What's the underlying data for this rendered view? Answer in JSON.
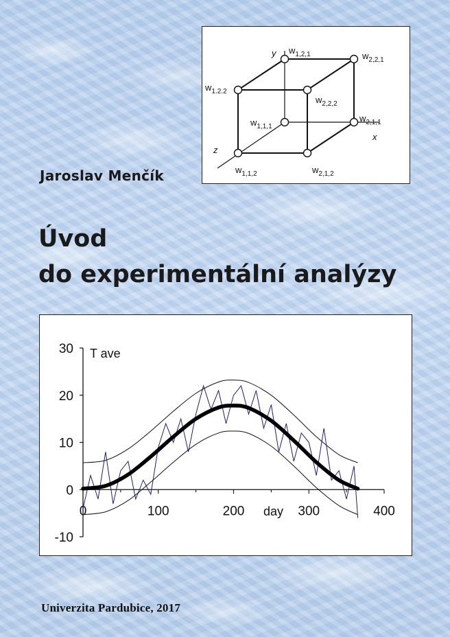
{
  "author": "Jaroslav Menčík",
  "title": {
    "line1": "Úvod",
    "line2": "do experimentální analýzy"
  },
  "publisher": "Univerzita Pardubice,  2017",
  "cube_diagram": {
    "axis_labels": {
      "x": "x",
      "y": "y",
      "z": "z"
    },
    "nodes": [
      {
        "id": "w121",
        "base": "w",
        "sub": "1,2,1"
      },
      {
        "id": "w221",
        "base": "w",
        "sub": "2,2,1"
      },
      {
        "id": "w122",
        "base": "w",
        "sub": "1.2.2"
      },
      {
        "id": "w222",
        "base": "w",
        "sub": "2,2,2"
      },
      {
        "id": "w111",
        "base": "w",
        "sub": "1,1,1"
      },
      {
        "id": "w211",
        "base": "w",
        "sub": "2,1,1"
      },
      {
        "id": "w112",
        "base": "w",
        "sub": "1,1,2"
      },
      {
        "id": "w212",
        "base": "w",
        "sub": "2,1,2"
      }
    ]
  },
  "chart_data": {
    "type": "line",
    "ylabel": "T ave",
    "xlabel": "day",
    "xlim": [
      0,
      400
    ],
    "ylim": [
      -10,
      30
    ],
    "xticks": [
      "0",
      "100",
      "200",
      "300",
      "400"
    ],
    "yticks": [
      "30",
      "20",
      "10",
      "0",
      "-10"
    ],
    "series": [
      {
        "id": "mean",
        "x": [
          0,
          30,
          60,
          90,
          120,
          150,
          180,
          200,
          220,
          250,
          280,
          310,
          340,
          365
        ],
        "values": [
          0.2,
          0.8,
          3.2,
          7.0,
          11.2,
          15.0,
          17.4,
          17.8,
          17.3,
          14.6,
          10.4,
          5.8,
          2.0,
          0.2
        ]
      },
      {
        "id": "upper",
        "x": [
          0,
          30,
          60,
          90,
          120,
          150,
          180,
          200,
          220,
          250,
          280,
          310,
          340,
          365
        ],
        "values": [
          5.7,
          6.2,
          8.6,
          12.4,
          16.6,
          20.4,
          22.8,
          23.2,
          22.7,
          20.0,
          15.8,
          11.2,
          7.4,
          5.7
        ]
      },
      {
        "id": "lower",
        "x": [
          0,
          30,
          60,
          90,
          120,
          150,
          180,
          200,
          220,
          250,
          280,
          310,
          340,
          365
        ],
        "values": [
          -5.3,
          -4.7,
          -2.3,
          1.6,
          5.8,
          9.6,
          12.0,
          12.4,
          11.9,
          9.2,
          5.0,
          0.4,
          -3.4,
          -5.3
        ]
      },
      {
        "id": "daily",
        "x": [
          0,
          10,
          20,
          30,
          40,
          50,
          60,
          70,
          80,
          90,
          100,
          110,
          120,
          130,
          140,
          150,
          160,
          170,
          180,
          190,
          200,
          210,
          220,
          230,
          240,
          250,
          260,
          270,
          280,
          290,
          300,
          310,
          320,
          330,
          340,
          350,
          360,
          365
        ],
        "values": [
          -4,
          3,
          -2,
          8,
          -3,
          4,
          6,
          -2,
          2,
          -1,
          9,
          14,
          10,
          15,
          8,
          16,
          22,
          17,
          21,
          14,
          20,
          22,
          16,
          21,
          13,
          18,
          8,
          14,
          6,
          12,
          10,
          3,
          13,
          2,
          4,
          -2,
          5,
          -6
        ]
      }
    ],
    "colors": {
      "mean": "#000000",
      "bands": "#111111",
      "daily": "#1b1b8a"
    }
  }
}
